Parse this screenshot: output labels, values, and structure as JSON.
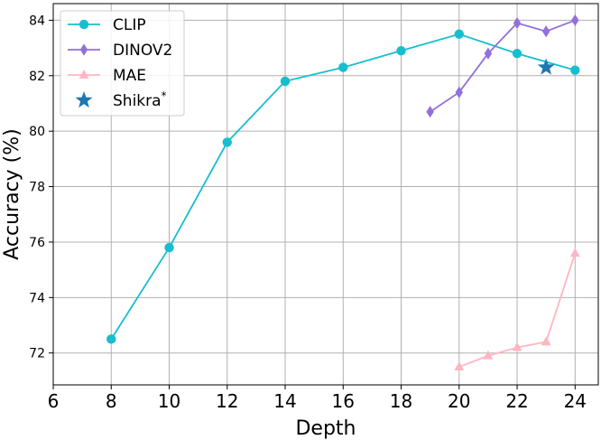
{
  "chart_data": {
    "type": "line",
    "title": "",
    "xlabel": "Depth",
    "ylabel": "Accuracy (%)",
    "xlim": [
      6,
      24.8
    ],
    "ylim": [
      70.85,
      84.6
    ],
    "xticks": [
      6,
      8,
      10,
      12,
      14,
      16,
      18,
      20,
      22,
      24
    ],
    "yticks": [
      72,
      74,
      76,
      78,
      80,
      82,
      84
    ],
    "grid": true,
    "legend": "top-left",
    "series": [
      {
        "name": "CLIP",
        "marker": "circle",
        "color": "#17becf",
        "x": [
          8,
          10,
          12,
          14,
          16,
          18,
          20,
          22,
          24
        ],
        "y": [
          72.5,
          75.8,
          79.6,
          81.8,
          82.3,
          82.9,
          83.5,
          82.8,
          82.2
        ]
      },
      {
        "name": "DINOV2",
        "marker": "thin-diamond",
        "color": "#9370db",
        "x": [
          19,
          20,
          21,
          22,
          23,
          24
        ],
        "y": [
          80.7,
          81.4,
          82.8,
          83.9,
          83.6,
          84.0
        ]
      },
      {
        "name": "MAE",
        "marker": "triangle",
        "color": "#ffb6c1",
        "x": [
          20,
          21,
          22,
          23,
          24
        ],
        "y": [
          71.5,
          71.9,
          72.2,
          72.4,
          75.6
        ]
      },
      {
        "name": "Shikra",
        "name_sup": "*",
        "marker": "star",
        "color": "#1f77b4",
        "x": [
          23
        ],
        "y": [
          82.3
        ]
      }
    ]
  }
}
